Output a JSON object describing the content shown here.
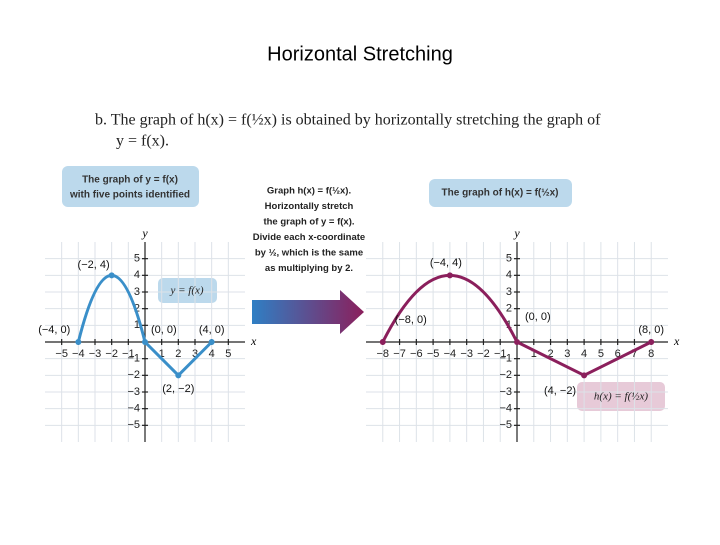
{
  "title": "Horizontal Stretching",
  "statement": [
    "b. The graph of h(x) = f(½x) is obtained by horizontally stretching the graph of",
    "y = f(x)."
  ],
  "instruction": [
    "Graph h(x) = f(½x).",
    "Horizontally stretch",
    "the graph of y = f(x).",
    "Divide each x-coordinate",
    "by ½, which is the same",
    "as multiplying by 2."
  ],
  "chart_data": [
    {
      "type": "line",
      "callouts": [
        "The graph of y = f(x)",
        "with five points identified"
      ],
      "xlabel": "x",
      "ylabel": "y",
      "series": [
        {
          "name": "y = f(x)",
          "color": "#3a8fc9",
          "x": [
            -4,
            -2,
            0,
            2,
            4
          ],
          "values": [
            0,
            4,
            0,
            -2,
            0
          ],
          "point_labels": [
            "(−4, 0)",
            "(−2, 4)",
            "(0, 0)",
            "(2, −2)",
            "(4, 0)"
          ]
        }
      ],
      "xlim": [
        -6,
        6
      ],
      "ylim": [
        -6,
        6
      ],
      "xticks": [
        {
          "value": -5,
          "label": "−5"
        },
        {
          "value": -4,
          "label": "−4"
        },
        {
          "value": -3,
          "label": "−3"
        },
        {
          "value": -2,
          "label": "−2"
        },
        {
          "value": -1,
          "label": "−1"
        },
        1,
        2,
        3,
        4,
        5
      ],
      "yticks": [
        {
          "value": -5,
          "label": "−5"
        },
        {
          "value": -4,
          "label": "−4"
        },
        {
          "value": -3,
          "label": "−3"
        },
        {
          "value": -2,
          "label": "−2"
        },
        {
          "value": -1,
          "label": "−1"
        },
        1,
        2,
        3,
        4,
        5
      ],
      "grid": true
    },
    {
      "type": "line",
      "callouts": [
        "The graph of h(x) = f(½x)"
      ],
      "xlabel": "x",
      "ylabel": "y",
      "series": [
        {
          "name": "h(x) = f(½x)",
          "color": "#8b1f5c",
          "x": [
            -8,
            -4,
            0,
            4,
            8
          ],
          "values": [
            0,
            4,
            0,
            -2,
            0
          ],
          "point_labels": [
            "(−8, 0)",
            "(−4, 4)",
            "(0, 0)",
            "(4, −2)",
            "(8, 0)"
          ]
        }
      ],
      "xlim": [
        -9,
        9
      ],
      "ylim": [
        -6,
        6
      ],
      "xticks": [
        {
          "value": -8,
          "label": "−8"
        },
        {
          "value": -7,
          "label": "−7"
        },
        {
          "value": -6,
          "label": "−6"
        },
        {
          "value": -5,
          "label": "−5"
        },
        {
          "value": -4,
          "label": "−4"
        },
        {
          "value": -3,
          "label": "−3"
        },
        {
          "value": -2,
          "label": "−2"
        },
        {
          "value": -1,
          "label": "−1"
        },
        1,
        2,
        3,
        4,
        5,
        6,
        7,
        8
      ],
      "yticks": [
        {
          "value": -5,
          "label": "−5"
        },
        {
          "value": -4,
          "label": "−4"
        },
        {
          "value": -3,
          "label": "−3"
        },
        {
          "value": -2,
          "label": "−2"
        },
        {
          "value": -1,
          "label": "−1"
        },
        1,
        2,
        3,
        4,
        5
      ],
      "grid": true
    }
  ]
}
